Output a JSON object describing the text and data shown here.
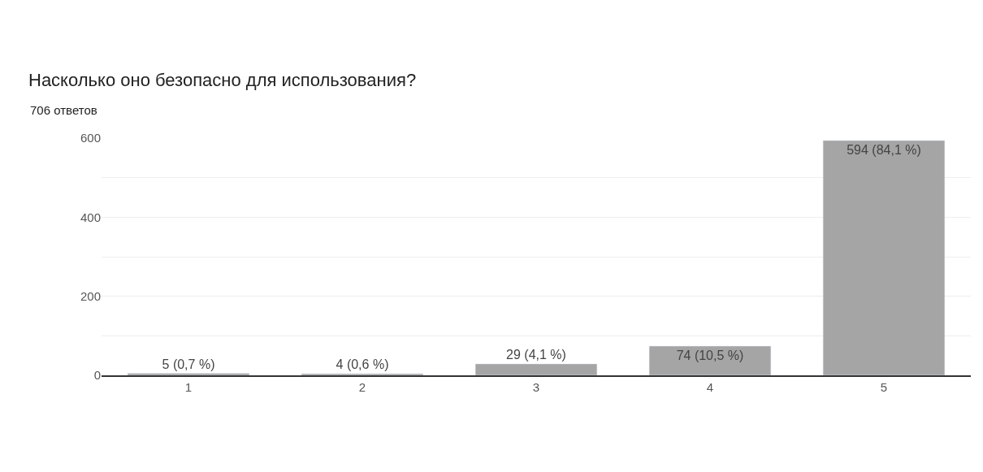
{
  "chart_data": {
    "type": "bar",
    "title": "Насколько оно безопасно для использования?",
    "subtitle": "706 ответов",
    "categories": [
      "1",
      "2",
      "3",
      "4",
      "5"
    ],
    "values": [
      5,
      4,
      29,
      74,
      594
    ],
    "value_labels": [
      "5 (0,7 %)",
      "4 (0,6 %)",
      "29 (4,1 %)",
      "74 (10,5 %)",
      "594 (84,1 %)"
    ],
    "color": "#a5a5a5",
    "ylim": [
      0,
      600
    ],
    "yticks": [
      0,
      {
        "value": 100,
        "label": null
      },
      200,
      {
        "value": 300,
        "label": null
      },
      400,
      {
        "value": 500,
        "label": null
      },
      600
    ],
    "grid": "y",
    "legend": false
  }
}
